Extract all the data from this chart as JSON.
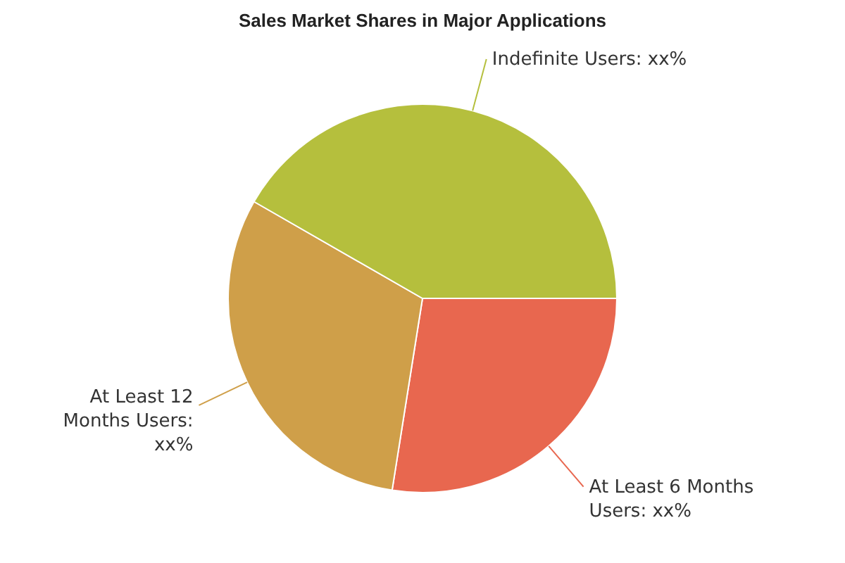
{
  "chart_data": {
    "type": "pie",
    "title": "Sales Market Shares in Major Applications",
    "categories": [
      "At Least 6 Months Users: xx%",
      "At Least 12 Months Users: xx%",
      "Indefinite Users: xx%"
    ],
    "values": [
      27.5,
      30.8,
      41.7
    ],
    "colors": [
      "#e8674f",
      "#cf9f49",
      "#b5bf3d"
    ],
    "legend": false
  }
}
